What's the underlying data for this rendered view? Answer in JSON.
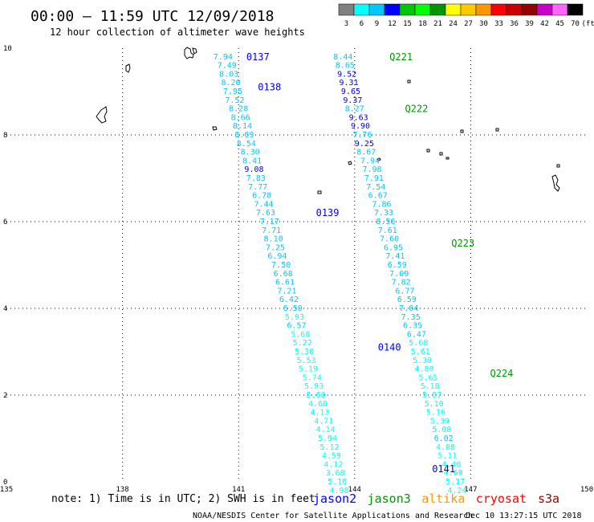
{
  "header": {
    "title": "00:00 – 11:59 UTC 12/09/2018",
    "subtitle": "12 hour collection of altimeter wave heights"
  },
  "color_scale": {
    "labels": [
      "3",
      "6",
      "9",
      "12",
      "15",
      "18",
      "21",
      "24",
      "27",
      "30",
      "33",
      "36",
      "39",
      "42",
      "45",
      "70"
    ],
    "unit": "(ft)",
    "colors": [
      "#808080",
      "#00ffff",
      "#00c8ff",
      "#0000ff",
      "#00c800",
      "#00ff00",
      "#009600",
      "#ffff00",
      "#ffc800",
      "#ff9600",
      "#ff0000",
      "#c80000",
      "#960000",
      "#c800c8",
      "#ff64ff",
      "#000000"
    ]
  },
  "axes": {
    "x_ticks": [
      "135",
      "138",
      "141",
      "144",
      "147",
      "150"
    ],
    "y_ticks": [
      "0",
      "2",
      "4",
      "6",
      "8",
      "10"
    ],
    "lon_range": [
      135,
      150
    ],
    "lat_range": [
      0,
      10
    ]
  },
  "passes": [
    {
      "label": "0137",
      "color": "#0000ff",
      "lon": 141.2,
      "lat": 9.8
    },
    {
      "label": "0138",
      "color": "#0000ff",
      "lon": 141.5,
      "lat": 9.1
    },
    {
      "label": "0139",
      "color": "#0000ff",
      "lon": 143.0,
      "lat": 6.2
    },
    {
      "label": "0140",
      "color": "#0000ff",
      "lon": 144.6,
      "lat": 3.1
    },
    {
      "label": "0141",
      "color": "#0000ff",
      "lon": 146.0,
      "lat": 0.3
    },
    {
      "label": "Q221",
      "color": "#009600",
      "lon": 144.9,
      "lat": 9.8
    },
    {
      "label": "Q222",
      "color": "#009600",
      "lon": 145.3,
      "lat": 8.6
    },
    {
      "label": "Q223",
      "color": "#009600",
      "lon": 146.5,
      "lat": 5.5
    },
    {
      "label": "Q224",
      "color": "#009600",
      "lon": 147.5,
      "lat": 2.5
    }
  ],
  "tracks": [
    {
      "name": "0137-0141",
      "points": [
        {
          "v": "7.94",
          "lon": 140.6,
          "lat": 9.8,
          "c": "#00c8ff"
        },
        {
          "v": "7.49",
          "lon": 140.7,
          "lat": 9.6,
          "c": "#00c8ff"
        },
        {
          "v": "8.03",
          "lon": 140.75,
          "lat": 9.4,
          "c": "#00c8ff"
        },
        {
          "v": "8.20",
          "lon": 140.8,
          "lat": 9.2,
          "c": "#00c8ff"
        },
        {
          "v": "7.95",
          "lon": 140.85,
          "lat": 9.0,
          "c": "#00c8ff"
        },
        {
          "v": "7.52",
          "lon": 140.9,
          "lat": 8.8,
          "c": "#00c8ff"
        },
        {
          "v": "8.28",
          "lon": 141.0,
          "lat": 8.6,
          "c": "#00c8ff"
        },
        {
          "v": "8.66",
          "lon": 141.05,
          "lat": 8.4,
          "c": "#00c8ff"
        },
        {
          "v": "8.14",
          "lon": 141.1,
          "lat": 8.2,
          "c": "#00c8ff"
        },
        {
          "v": "8.69",
          "lon": 141.15,
          "lat": 8.0,
          "c": "#00c8ff"
        },
        {
          "v": "8.54",
          "lon": 141.2,
          "lat": 7.8,
          "c": "#00c8ff"
        },
        {
          "v": "8.30",
          "lon": 141.3,
          "lat": 7.6,
          "c": "#00c8ff"
        },
        {
          "v": "8.41",
          "lon": 141.35,
          "lat": 7.4,
          "c": "#00c8ff"
        },
        {
          "v": "9.08",
          "lon": 141.4,
          "lat": 7.2,
          "c": "#0000ff"
        },
        {
          "v": "7.83",
          "lon": 141.45,
          "lat": 7.0,
          "c": "#00c8ff"
        },
        {
          "v": "7.77",
          "lon": 141.5,
          "lat": 6.8,
          "c": "#00c8ff"
        },
        {
          "v": "6.78",
          "lon": 141.6,
          "lat": 6.6,
          "c": "#00c8ff"
        },
        {
          "v": "7.44",
          "lon": 141.65,
          "lat": 6.4,
          "c": "#00c8ff"
        },
        {
          "v": "7.63",
          "lon": 141.7,
          "lat": 6.2,
          "c": "#00c8ff"
        },
        {
          "v": "7.17",
          "lon": 141.8,
          "lat": 6.0,
          "c": "#00c8ff"
        },
        {
          "v": "7.71",
          "lon": 141.85,
          "lat": 5.8,
          "c": "#00c8ff"
        },
        {
          "v": "8.10",
          "lon": 141.9,
          "lat": 5.6,
          "c": "#00c8ff"
        },
        {
          "v": "7.25",
          "lon": 141.95,
          "lat": 5.4,
          "c": "#00c8ff"
        },
        {
          "v": "6.94",
          "lon": 142.0,
          "lat": 5.2,
          "c": "#00c8ff"
        },
        {
          "v": "7.50",
          "lon": 142.1,
          "lat": 5.0,
          "c": "#00c8ff"
        },
        {
          "v": "6.68",
          "lon": 142.15,
          "lat": 4.8,
          "c": "#00c8ff"
        },
        {
          "v": "6.61",
          "lon": 142.2,
          "lat": 4.6,
          "c": "#00c8ff"
        },
        {
          "v": "7.21",
          "lon": 142.25,
          "lat": 4.4,
          "c": "#00c8ff"
        },
        {
          "v": "6.42",
          "lon": 142.3,
          "lat": 4.2,
          "c": "#00c8ff"
        },
        {
          "v": "6.50",
          "lon": 142.4,
          "lat": 4.0,
          "c": "#00c8ff"
        },
        {
          "v": "5.93",
          "lon": 142.45,
          "lat": 3.8,
          "c": "#00ffff"
        },
        {
          "v": "6.57",
          "lon": 142.5,
          "lat": 3.6,
          "c": "#00c8ff"
        },
        {
          "v": "5.68",
          "lon": 142.6,
          "lat": 3.4,
          "c": "#00ffff"
        },
        {
          "v": "5.22",
          "lon": 142.65,
          "lat": 3.2,
          "c": "#00ffff"
        },
        {
          "v": "5.30",
          "lon": 142.7,
          "lat": 3.0,
          "c": "#00ffff"
        },
        {
          "v": "5.53",
          "lon": 142.75,
          "lat": 2.8,
          "c": "#00ffff"
        },
        {
          "v": "5.19",
          "lon": 142.8,
          "lat": 2.6,
          "c": "#00ffff"
        },
        {
          "v": "5.74",
          "lon": 142.9,
          "lat": 2.4,
          "c": "#00ffff"
        },
        {
          "v": "5.93",
          "lon": 142.95,
          "lat": 2.2,
          "c": "#00ffff"
        },
        {
          "v": "5.60",
          "lon": 143.0,
          "lat": 2.0,
          "c": "#00ffff"
        },
        {
          "v": "4.68",
          "lon": 143.05,
          "lat": 1.8,
          "c": "#00ffff"
        },
        {
          "v": "4.13",
          "lon": 143.1,
          "lat": 1.6,
          "c": "#00ffff"
        },
        {
          "v": "4.71",
          "lon": 143.2,
          "lat": 1.4,
          "c": "#00ffff"
        },
        {
          "v": "4.14",
          "lon": 143.25,
          "lat": 1.2,
          "c": "#00ffff"
        },
        {
          "v": "5.94",
          "lon": 143.3,
          "lat": 1.0,
          "c": "#00ffff"
        },
        {
          "v": "5.12",
          "lon": 143.35,
          "lat": 0.8,
          "c": "#00ffff"
        },
        {
          "v": "4.59",
          "lon": 143.4,
          "lat": 0.6,
          "c": "#00ffff"
        },
        {
          "v": "4.12",
          "lon": 143.45,
          "lat": 0.4,
          "c": "#00ffff"
        },
        {
          "v": "3.68",
          "lon": 143.5,
          "lat": 0.2,
          "c": "#00ffff"
        },
        {
          "v": "5.16",
          "lon": 143.55,
          "lat": 0.0,
          "c": "#00ffff"
        },
        {
          "v": "4.98",
          "lon": 143.6,
          "lat": -0.2,
          "c": "#00ffff"
        }
      ]
    },
    {
      "name": "Q221-Q224",
      "points": [
        {
          "v": "8.44",
          "lon": 143.7,
          "lat": 9.8,
          "c": "#00c8ff"
        },
        {
          "v": "8.65",
          "lon": 143.75,
          "lat": 9.6,
          "c": "#00c8ff"
        },
        {
          "v": "9.52",
          "lon": 143.8,
          "lat": 9.4,
          "c": "#0000ff"
        },
        {
          "v": "9.31",
          "lon": 143.85,
          "lat": 9.2,
          "c": "#0000ff"
        },
        {
          "v": "9.65",
          "lon": 143.9,
          "lat": 9.0,
          "c": "#0000ff"
        },
        {
          "v": "9.37",
          "lon": 143.95,
          "lat": 8.8,
          "c": "#0000ff"
        },
        {
          "v": "8.27",
          "lon": 144.0,
          "lat": 8.6,
          "c": "#00c8ff"
        },
        {
          "v": "9.63",
          "lon": 144.1,
          "lat": 8.4,
          "c": "#0000ff"
        },
        {
          "v": "9.90",
          "lon": 144.15,
          "lat": 8.2,
          "c": "#0000ff"
        },
        {
          "v": "7.76",
          "lon": 144.2,
          "lat": 8.0,
          "c": "#00c8ff"
        },
        {
          "v": "9.25",
          "lon": 144.25,
          "lat": 7.8,
          "c": "#0000ff"
        },
        {
          "v": "8.67",
          "lon": 144.3,
          "lat": 7.6,
          "c": "#00c8ff"
        },
        {
          "v": "7.94",
          "lon": 144.4,
          "lat": 7.4,
          "c": "#00c8ff"
        },
        {
          "v": "7.98",
          "lon": 144.45,
          "lat": 7.2,
          "c": "#00c8ff"
        },
        {
          "v": "7.91",
          "lon": 144.5,
          "lat": 7.0,
          "c": "#00c8ff"
        },
        {
          "v": "7.54",
          "lon": 144.55,
          "lat": 6.8,
          "c": "#00c8ff"
        },
        {
          "v": "6.67",
          "lon": 144.6,
          "lat": 6.6,
          "c": "#00c8ff"
        },
        {
          "v": "7.86",
          "lon": 144.7,
          "lat": 6.4,
          "c": "#00c8ff"
        },
        {
          "v": "7.33",
          "lon": 144.75,
          "lat": 6.2,
          "c": "#00c8ff"
        },
        {
          "v": "8.56",
          "lon": 144.8,
          "lat": 6.0,
          "c": "#00c8ff"
        },
        {
          "v": "7.61",
          "lon": 144.85,
          "lat": 5.8,
          "c": "#00c8ff"
        },
        {
          "v": "7.60",
          "lon": 144.9,
          "lat": 5.6,
          "c": "#00c8ff"
        },
        {
          "v": "6.95",
          "lon": 145.0,
          "lat": 5.4,
          "c": "#00c8ff"
        },
        {
          "v": "7.41",
          "lon": 145.05,
          "lat": 5.2,
          "c": "#00c8ff"
        },
        {
          "v": "6.59",
          "lon": 145.1,
          "lat": 5.0,
          "c": "#00c8ff"
        },
        {
          "v": "7.09",
          "lon": 145.15,
          "lat": 4.8,
          "c": "#00c8ff"
        },
        {
          "v": "7.82",
          "lon": 145.2,
          "lat": 4.6,
          "c": "#00c8ff"
        },
        {
          "v": "6.77",
          "lon": 145.3,
          "lat": 4.4,
          "c": "#00c8ff"
        },
        {
          "v": "6.59",
          "lon": 145.35,
          "lat": 4.2,
          "c": "#00c8ff"
        },
        {
          "v": "7.04",
          "lon": 145.4,
          "lat": 4.0,
          "c": "#00c8ff"
        },
        {
          "v": "7.35",
          "lon": 145.45,
          "lat": 3.8,
          "c": "#00c8ff"
        },
        {
          "v": "6.35",
          "lon": 145.5,
          "lat": 3.6,
          "c": "#00c8ff"
        },
        {
          "v": "6.47",
          "lon": 145.6,
          "lat": 3.4,
          "c": "#00c8ff"
        },
        {
          "v": "5.68",
          "lon": 145.65,
          "lat": 3.2,
          "c": "#00ffff"
        },
        {
          "v": "5.61",
          "lon": 145.7,
          "lat": 3.0,
          "c": "#00ffff"
        },
        {
          "v": "5.38",
          "lon": 145.75,
          "lat": 2.8,
          "c": "#00ffff"
        },
        {
          "v": "4.80",
          "lon": 145.8,
          "lat": 2.6,
          "c": "#00ffff"
        },
        {
          "v": "5.65",
          "lon": 145.9,
          "lat": 2.4,
          "c": "#00ffff"
        },
        {
          "v": "5.18",
          "lon": 145.95,
          "lat": 2.2,
          "c": "#00ffff"
        },
        {
          "v": "5.07",
          "lon": 146.0,
          "lat": 2.0,
          "c": "#00ffff"
        },
        {
          "v": "5.10",
          "lon": 146.05,
          "lat": 1.8,
          "c": "#00ffff"
        },
        {
          "v": "5.16",
          "lon": 146.1,
          "lat": 1.6,
          "c": "#00ffff"
        },
        {
          "v": "5.39",
          "lon": 146.2,
          "lat": 1.4,
          "c": "#00ffff"
        },
        {
          "v": "5.08",
          "lon": 146.25,
          "lat": 1.2,
          "c": "#00ffff"
        },
        {
          "v": "6.02",
          "lon": 146.3,
          "lat": 1.0,
          "c": "#00c8ff"
        },
        {
          "v": "4.88",
          "lon": 146.35,
          "lat": 0.8,
          "c": "#00ffff"
        },
        {
          "v": "5.11",
          "lon": 146.4,
          "lat": 0.6,
          "c": "#00ffff"
        },
        {
          "v": "4.40",
          "lon": 146.5,
          "lat": 0.4,
          "c": "#00ffff"
        },
        {
          "v": "4.60",
          "lon": 146.55,
          "lat": 0.2,
          "c": "#00ffff"
        },
        {
          "v": "5.17",
          "lon": 146.6,
          "lat": 0.0,
          "c": "#00ffff"
        },
        {
          "v": "4.24",
          "lon": 146.65,
          "lat": -0.2,
          "c": "#00ffff"
        }
      ]
    }
  ],
  "footer": {
    "note": "note: 1) Time is in UTC; 2) SWH is in feet",
    "missions": [
      {
        "name": "jason2",
        "color": "#0000ff"
      },
      {
        "name": "jason3",
        "color": "#009600"
      },
      {
        "name": "altika",
        "color": "#ff9600"
      },
      {
        "name": "cryosat",
        "color": "#ff0000"
      },
      {
        "name": "s3a",
        "color": "#960000"
      }
    ],
    "credit": "NOAA/NESDIS Center for Satellite Applications and Research",
    "timestamp": "Dec 10 13:27:15 UTC 2018"
  }
}
